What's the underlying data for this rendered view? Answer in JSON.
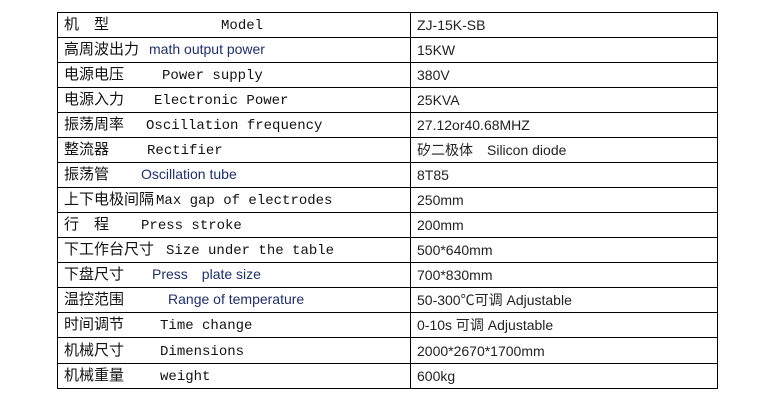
{
  "rows": [
    {
      "cn": "机　型",
      "en": "Model",
      "value": "ZJ-15K-SB",
      "style": "mono",
      "pad": 110
    },
    {
      "cn": "高周波出力",
      "en": "math output power",
      "value": "15KW",
      "style": "sans",
      "pad": 8
    },
    {
      "cn": "电源电压",
      "en": "Power supply",
      "value": "380V",
      "style": "mono",
      "pad": 36
    },
    {
      "cn": "电源入力",
      "en": "Electronic Power",
      "value": "25KVA",
      "style": "mono",
      "pad": 28
    },
    {
      "cn": "振荡周率",
      "en": "Oscillation frequency",
      "value": "27.12or40.68MHZ",
      "style": "mono",
      "pad": 20
    },
    {
      "cn": "整流器",
      "en": "Rectifier",
      "value": "矽二极体　Silicon diode",
      "style": "mono",
      "pad": 36
    },
    {
      "cn": "振荡管",
      "en": "Oscillation tube",
      "value": "8T85",
      "style": "sans",
      "pad": 30
    },
    {
      "cn": "上下电极间隔",
      "en": "Max gap of electrodes",
      "value": "250mm",
      "style": "mono",
      "pad": 0
    },
    {
      "cn": "行　程",
      "en": "Press stroke",
      "value": "200mm",
      "style": "mono",
      "pad": 30
    },
    {
      "cn": "下工作台尺寸",
      "en": "Size under the table",
      "value": "500*640mm",
      "style": "mono",
      "pad": 10
    },
    {
      "cn": "下盘尺寸",
      "en": "Press　plate size",
      "value": "700*830mm",
      "style": "sans",
      "pad": 26
    },
    {
      "cn": "温控范围",
      "en": "Range of temperature",
      "value": "50-300℃可调  Adjustable",
      "style": "sans",
      "pad": 42
    },
    {
      "cn": "时间调节",
      "en": "Time change",
      "value": "0-10s 可调 Adjustable",
      "style": "mono",
      "pad": 34
    },
    {
      "cn": "机械尺寸",
      "en": "Dimensions",
      "value": "2000*2670*1700mm",
      "style": "mono",
      "pad": 34
    },
    {
      "cn": "机械重量",
      "en": "weight",
      "value": "600kg",
      "style": "mono",
      "pad": 34
    }
  ]
}
